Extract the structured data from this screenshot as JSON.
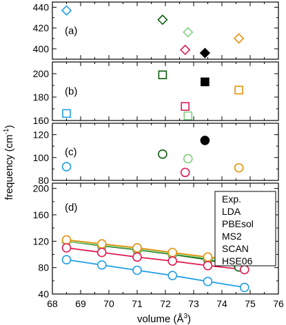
{
  "chart_data": {
    "type": "scatter",
    "xlabel_main": "volume (Å",
    "xlabel_sup": "3",
    "xlabel_close": ")",
    "ylabel_main": "frequency (cm",
    "ylabel_sup": "-1",
    "ylabel_close": ")",
    "xlim": [
      68,
      76
    ],
    "xticks": [
      "68",
      "69",
      "70",
      "71",
      "72",
      "73",
      "74",
      "75",
      "76"
    ],
    "legend": {
      "title": "Exp.",
      "entries": [
        {
          "name": "LDA",
          "color": "#1e9ee6"
        },
        {
          "name": "PBEsol",
          "color": "#e0194f"
        },
        {
          "name": "MS2",
          "color": "#80d080"
        },
        {
          "name": "SCAN",
          "color": "#0a5a0a"
        },
        {
          "name": "HSE06",
          "color": "#e8900a"
        }
      ]
    },
    "colors": {
      "Exp": "#000000",
      "LDA": "#1e9ee6",
      "PBEsol": "#e0194f",
      "MS2": "#80d080",
      "SCAN": "#0a5a0a",
      "HSE06": "#e8900a"
    },
    "panels": [
      {
        "label": "(a)",
        "marker": "diamond",
        "ylim": [
          390,
          445
        ],
        "yticks": [
          "400",
          "420",
          "440"
        ],
        "points": [
          {
            "series": "LDA",
            "x": 68.5,
            "y": 437
          },
          {
            "series": "SCAN",
            "x": 71.9,
            "y": 428
          },
          {
            "series": "MS2",
            "x": 72.8,
            "y": 416
          },
          {
            "series": "PBEsol",
            "x": 72.7,
            "y": 399
          },
          {
            "series": "Exp",
            "x": 73.4,
            "y": 396
          },
          {
            "series": "HSE06",
            "x": 74.6,
            "y": 410
          }
        ]
      },
      {
        "label": "(b)",
        "marker": "square",
        "ylim": [
          160,
          210
        ],
        "yticks": [
          "160",
          "180",
          "200"
        ],
        "points": [
          {
            "series": "LDA",
            "x": 68.5,
            "y": 166
          },
          {
            "series": "SCAN",
            "x": 71.9,
            "y": 199
          },
          {
            "series": "PBEsol",
            "x": 72.7,
            "y": 172
          },
          {
            "series": "MS2",
            "x": 72.8,
            "y": 164
          },
          {
            "series": "Exp",
            "x": 73.4,
            "y": 193
          },
          {
            "series": "HSE06",
            "x": 74.6,
            "y": 186
          }
        ]
      },
      {
        "label": "(c)",
        "marker": "circle",
        "ylim": [
          80,
          130
        ],
        "yticks": [
          "80",
          "100",
          "120"
        ],
        "points": [
          {
            "series": "LDA",
            "x": 68.5,
            "y": 92
          },
          {
            "series": "SCAN",
            "x": 71.9,
            "y": 103
          },
          {
            "series": "PBEsol",
            "x": 72.7,
            "y": 87
          },
          {
            "series": "MS2",
            "x": 72.8,
            "y": 99
          },
          {
            "series": "Exp",
            "x": 73.4,
            "y": 115
          },
          {
            "series": "HSE06",
            "x": 74.6,
            "y": 91
          }
        ]
      },
      {
        "label": "(d)",
        "marker": "circle",
        "ylim": [
          40,
          208
        ],
        "yticks": [
          "40",
          "80",
          "120",
          "160",
          "200"
        ],
        "series": [
          {
            "name": "SCAN",
            "x": [
              68.5,
              69.75,
              71.0,
              72.25,
              73.5,
              74.6
            ],
            "y": [
              120,
              113,
              107,
              100,
              92,
              81
            ]
          },
          {
            "name": "MS2",
            "x": [
              68.5,
              69.75,
              71.0,
              72.25,
              73.5,
              74.8
            ],
            "y": [
              120,
              114,
              108,
              101,
              94,
              86
            ]
          },
          {
            "name": "HSE06",
            "x": [
              68.5,
              69.75,
              71.0,
              72.25,
              73.5,
              74.8
            ],
            "y": [
              122,
              116,
              110,
              103,
              96,
              91
            ]
          },
          {
            "name": "PBEsol",
            "x": [
              68.5,
              69.75,
              71.0,
              72.25,
              73.5,
              74.8
            ],
            "y": [
              110,
              103,
              96,
              90,
              83,
              77
            ]
          },
          {
            "name": "LDA",
            "x": [
              68.5,
              69.75,
              71.0,
              72.25,
              73.5,
              74.8
            ],
            "y": [
              92,
              84,
              76,
              68,
              59,
              50
            ]
          }
        ]
      }
    ]
  }
}
